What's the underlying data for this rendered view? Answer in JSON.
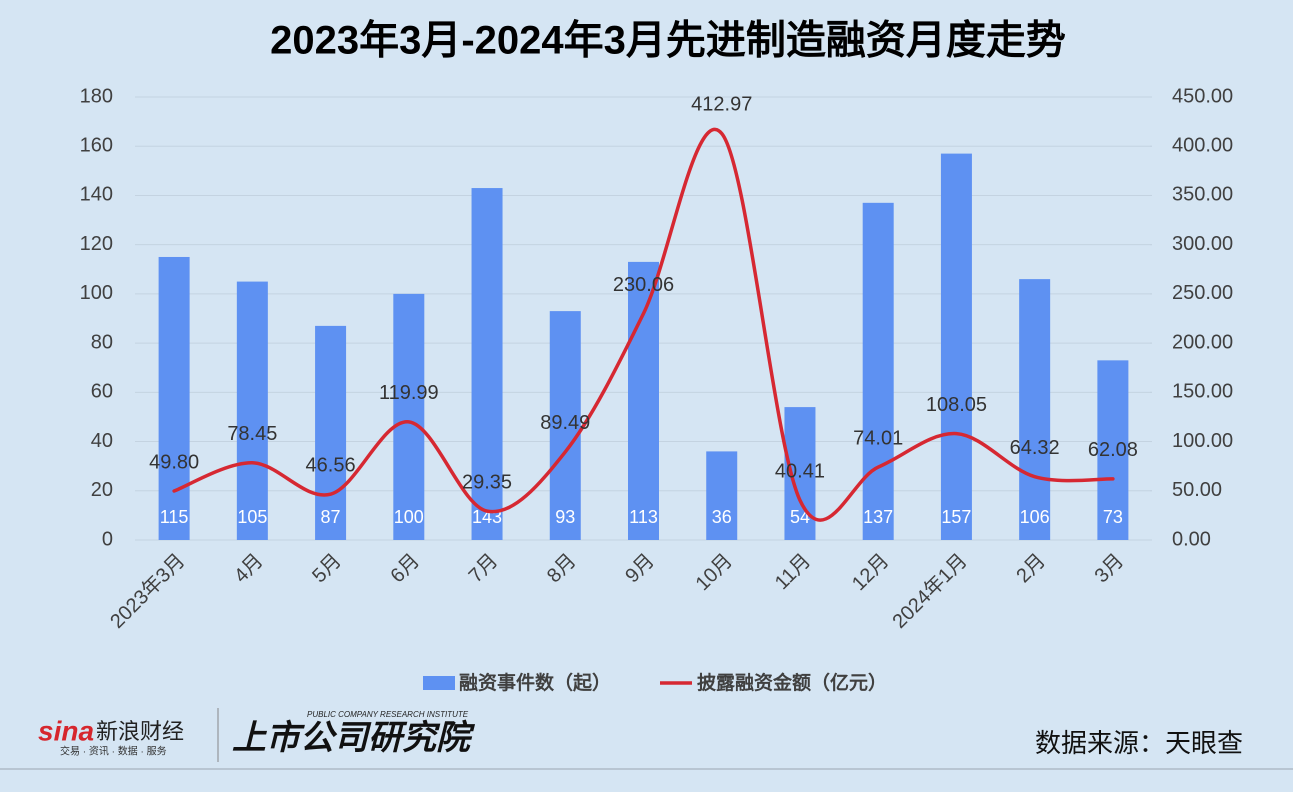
{
  "chart_data": {
    "type": "bar",
    "title": "2023年3月-2024年3月先进制造融资月度走势",
    "categories": [
      "2023年3月",
      "4月",
      "5月",
      "6月",
      "7月",
      "8月",
      "9月",
      "10月",
      "11月",
      "12月",
      "2024年1月",
      "2月",
      "3月"
    ],
    "series": [
      {
        "name": "融资事件数（起）",
        "type": "bar",
        "color": "#5e91f2",
        "values": [
          115,
          105,
          87,
          100,
          143,
          93,
          113,
          36,
          54,
          137,
          157,
          106,
          73
        ]
      },
      {
        "name": "披露融资金额（亿元）",
        "type": "line",
        "axis": "y2",
        "color": "#d62832",
        "values": [
          49.8,
          78.45,
          46.56,
          119.99,
          29.35,
          89.49,
          230.06,
          412.97,
          40.41,
          74.01,
          108.05,
          64.32,
          62.08
        ],
        "value_labels": [
          "49.80",
          "78.45",
          "46.56",
          "119.99",
          "29.35",
          "89.49",
          "230.06",
          "412.97",
          "40.41",
          "74.01",
          "108.05",
          "64.32",
          "62.08"
        ]
      }
    ],
    "ylim": [
      0,
      180
    ],
    "yticks": [
      0,
      20,
      40,
      60,
      80,
      100,
      120,
      140,
      160,
      180
    ],
    "y2lim": [
      0,
      450
    ],
    "y2ticks": [
      {
        "value": 0,
        "label": "0.00"
      },
      {
        "value": 50,
        "label": "50.00"
      },
      {
        "value": 100,
        "label": "100.00"
      },
      {
        "value": 150,
        "label": "150.00"
      },
      {
        "value": 200,
        "label": "200.00"
      },
      {
        "value": 250,
        "label": "250.00"
      },
      {
        "value": 300,
        "label": "300.00"
      },
      {
        "value": 350,
        "label": "350.00"
      },
      {
        "value": 400,
        "label": "400.00"
      },
      {
        "value": 450,
        "label": "450.00"
      }
    ],
    "grid": true,
    "legend": "bottom",
    "smooth": true,
    "source": "数据来源：天眼查"
  },
  "branding": {
    "sina_logo": "sina",
    "sina_name": "新浪财经",
    "sina_slogan": "交易 · 资讯 · 数据 · 服务",
    "institute": "上市公司研究院",
    "institute_en": "PUBLIC COMPANY RESEARCH INSTITUTE"
  }
}
